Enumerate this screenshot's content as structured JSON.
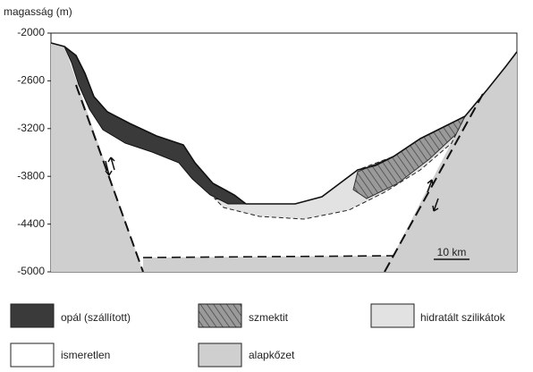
{
  "axis": {
    "label": "magasság (m)",
    "ticks": [
      "-2000",
      "-2600",
      "-3200",
      "-3800",
      "-4400",
      "-5000"
    ]
  },
  "scale_bar": "10 km",
  "legend": [
    "opál (szállított)",
    "szmektit",
    "hidratált szilikátok",
    "ismeretlen",
    "alapkőzet"
  ]
}
